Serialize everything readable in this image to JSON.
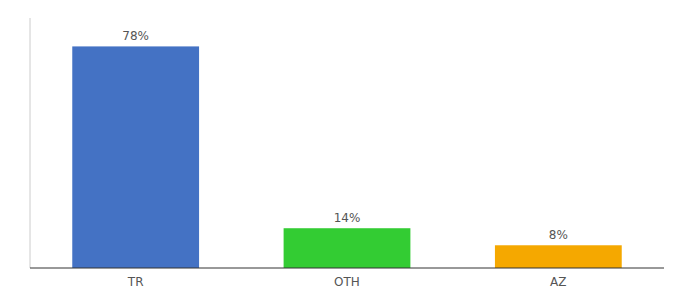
{
  "chart_data": {
    "type": "bar",
    "categories": [
      "TR",
      "OTH",
      "AZ"
    ],
    "values": [
      78,
      14,
      8
    ],
    "value_labels": [
      "78%",
      "14%",
      "8%"
    ],
    "colors": [
      "#4472c4",
      "#33cc33",
      "#f5a800"
    ],
    "ylim": [
      0,
      88
    ],
    "data_labels": true,
    "tick_labels": "x",
    "grid": false
  }
}
